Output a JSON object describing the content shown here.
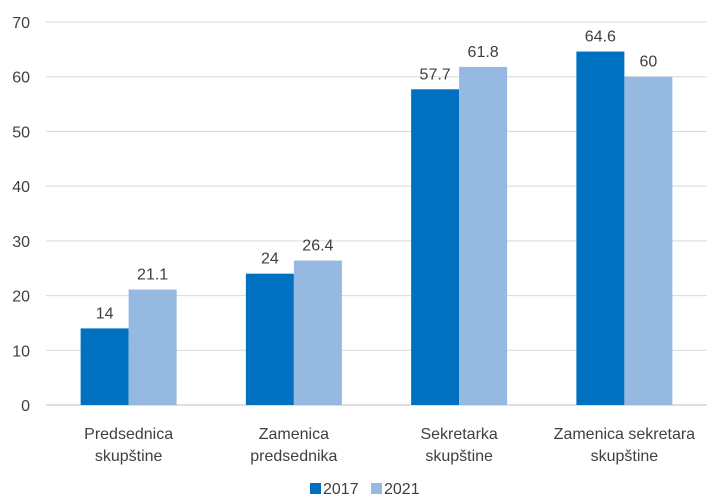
{
  "chart_data": {
    "type": "bar",
    "title": "",
    "xlabel": "",
    "ylabel": "",
    "ylim": [
      0,
      70
    ],
    "yticks": [
      0,
      10,
      20,
      30,
      40,
      50,
      60,
      70
    ],
    "grid": true,
    "legend_position": "bottom",
    "categories": [
      [
        "Predsednica",
        "skupštine"
      ],
      [
        "Zamenica",
        "predsednika"
      ],
      [
        "Sekretarka",
        "skupštine"
      ],
      [
        "Zamenica sekretara",
        "skupštine"
      ]
    ],
    "series": [
      {
        "name": "2017",
        "color": "#0070c0",
        "values": [
          14,
          24,
          57.7,
          64.6
        ]
      },
      {
        "name": "2021",
        "color": "#95b9e1",
        "values": [
          21.1,
          26.4,
          61.8,
          60
        ]
      }
    ]
  }
}
